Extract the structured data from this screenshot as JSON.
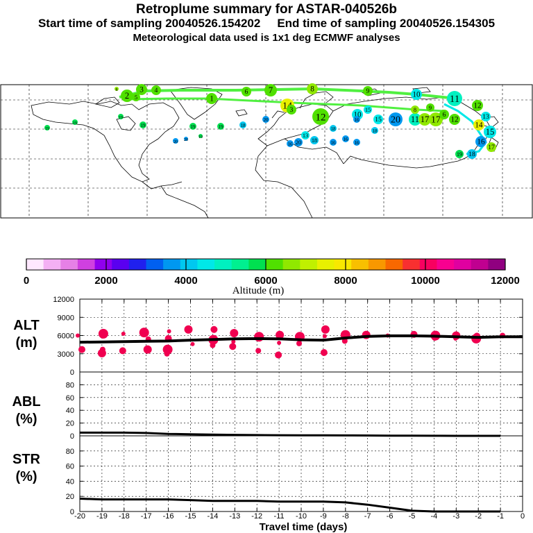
{
  "header": {
    "title": "Retroplume summary for ASTAR-040526b",
    "start_label": "Start time of sampling 20040526.154202",
    "end_label": "End time of sampling 20040526.154305",
    "met_line": "Meteorological data used is 1x1 deg ECMWF analyses"
  },
  "colorbar": {
    "colors": [
      "#ffe8ff",
      "#f4b0f4",
      "#e680e6",
      "#d040e0",
      "#9000ee",
      "#5a00f0",
      "#2020ee",
      "#0060f0",
      "#0098f0",
      "#00c8f0",
      "#00e8e8",
      "#00f0c0",
      "#00f090",
      "#00e050",
      "#50e000",
      "#90e800",
      "#c0f000",
      "#e8f000",
      "#f8e800",
      "#f8c000",
      "#f89800",
      "#f86800",
      "#f83030",
      "#f80060",
      "#f80090",
      "#e000a0",
      "#c00090",
      "#900080"
    ],
    "tick_labels": [
      "0",
      "2000",
      "4000",
      "6000",
      "8000",
      "10000",
      "12000"
    ],
    "label": "Altitude (m)"
  },
  "map": {
    "trajectory_labels": [
      {
        "t": "1",
        "c": "#50e000"
      },
      {
        "t": "2",
        "c": "#50e000"
      },
      {
        "t": "3",
        "c": "#50e000"
      },
      {
        "t": "4",
        "c": "#50e000"
      },
      {
        "t": "5",
        "c": "#50e000"
      },
      {
        "t": "6",
        "c": "#50e000"
      },
      {
        "t": "7",
        "c": "#50e000"
      },
      {
        "t": "8",
        "c": "#90e800"
      },
      {
        "t": "9",
        "c": "#50e000"
      },
      {
        "t": "10",
        "c": "#00e8e8"
      },
      {
        "t": "11",
        "c": "#00f0c0"
      },
      {
        "t": "12",
        "c": "#50e000"
      },
      {
        "t": "13",
        "c": "#00e8e8"
      },
      {
        "t": "14",
        "c": "#e8f000"
      },
      {
        "t": "15",
        "c": "#00e8e8"
      },
      {
        "t": "16",
        "c": "#0098f0"
      },
      {
        "t": "17",
        "c": "#90e800"
      },
      {
        "t": "18",
        "c": "#00c8f0"
      },
      {
        "t": "19",
        "c": "#00e050"
      },
      {
        "t": "20",
        "c": "#0098f0"
      }
    ]
  },
  "chart_data": [
    {
      "type": "scatter",
      "panel": "ALT",
      "ylabel": "(m)",
      "title": "ALT",
      "xlim": [
        -20,
        0
      ],
      "ylim": [
        0,
        12000
      ],
      "yticks": [
        0,
        3000,
        6000,
        9000,
        12000
      ],
      "median_line": [
        {
          "x": -20,
          "y": 4900
        },
        {
          "x": -19,
          "y": 4950
        },
        {
          "x": -18,
          "y": 5000
        },
        {
          "x": -17,
          "y": 5050
        },
        {
          "x": -16,
          "y": 5100
        },
        {
          "x": -15,
          "y": 5250
        },
        {
          "x": -14,
          "y": 5350
        },
        {
          "x": -13,
          "y": 5450
        },
        {
          "x": -12,
          "y": 5500
        },
        {
          "x": -11,
          "y": 5450
        },
        {
          "x": -10,
          "y": 5300
        },
        {
          "x": -9,
          "y": 5250
        },
        {
          "x": -8,
          "y": 5600
        },
        {
          "x": -7,
          "y": 5850
        },
        {
          "x": -6,
          "y": 5950
        },
        {
          "x": -5,
          "y": 5950
        },
        {
          "x": -4,
          "y": 5900
        },
        {
          "x": -3,
          "y": 5800
        },
        {
          "x": -2,
          "y": 5700
        },
        {
          "x": -1,
          "y": 5800
        },
        {
          "x": 0,
          "y": 5800
        }
      ],
      "points": [
        {
          "x": -20,
          "y": 6000
        },
        {
          "x": -20,
          "y": 3700
        },
        {
          "x": -19,
          "y": 6300
        },
        {
          "x": -19,
          "y": 3700
        },
        {
          "x": -19,
          "y": 3100
        },
        {
          "x": -18,
          "y": 6300
        },
        {
          "x": -18,
          "y": 3500
        },
        {
          "x": -17,
          "y": 6500
        },
        {
          "x": -17,
          "y": 5400
        },
        {
          "x": -17,
          "y": 3700
        },
        {
          "x": -16,
          "y": 6700
        },
        {
          "x": -16,
          "y": 5500
        },
        {
          "x": -16,
          "y": 3700
        },
        {
          "x": -16,
          "y": 3000
        },
        {
          "x": -15,
          "y": 7000
        },
        {
          "x": -15,
          "y": 4600
        },
        {
          "x": -14,
          "y": 7000
        },
        {
          "x": -14,
          "y": 5300
        },
        {
          "x": -14,
          "y": 4400
        },
        {
          "x": -13,
          "y": 6400
        },
        {
          "x": -13,
          "y": 5000
        },
        {
          "x": -13,
          "y": 4200
        },
        {
          "x": -12,
          "y": 5800
        },
        {
          "x": -12,
          "y": 3500
        },
        {
          "x": -11,
          "y": 6100
        },
        {
          "x": -11,
          "y": 4800
        },
        {
          "x": -11,
          "y": 2800
        },
        {
          "x": -10,
          "y": 5800
        },
        {
          "x": -10,
          "y": 4700
        },
        {
          "x": -9,
          "y": 7000
        },
        {
          "x": -9,
          "y": 5900
        },
        {
          "x": -9,
          "y": 3200
        },
        {
          "x": -8,
          "y": 6100
        },
        {
          "x": -8,
          "y": 5100
        },
        {
          "x": -7,
          "y": 6100
        },
        {
          "x": -6,
          "y": 6000
        },
        {
          "x": -5,
          "y": 6200
        },
        {
          "x": -4,
          "y": 6000
        },
        {
          "x": -4,
          "y": 5600
        },
        {
          "x": -3,
          "y": 6000
        },
        {
          "x": -3,
          "y": 5500
        },
        {
          "x": -2,
          "y": 5900
        },
        {
          "x": -2,
          "y": 5500
        },
        {
          "x": -1,
          "y": 6000
        }
      ]
    },
    {
      "type": "line",
      "panel": "ABL",
      "title": "ABL",
      "ylabel": "(%)",
      "xlim": [
        -20,
        0
      ],
      "ylim": [
        0,
        100
      ],
      "yticks": [
        0,
        20,
        40,
        60,
        80
      ],
      "x": [
        -20,
        -19,
        -18,
        -17,
        -16,
        -15,
        -14,
        -13,
        -12,
        -11,
        -10,
        -9,
        -8,
        -7,
        -6,
        -5,
        -4,
        -3,
        -2,
        -1
      ],
      "values": [
        5,
        5,
        5,
        4.5,
        3,
        2.5,
        2,
        1.5,
        1.2,
        1,
        0.9,
        0.8,
        0.6,
        0.5,
        0.3,
        0.2,
        0.1,
        0,
        0,
        0
      ]
    },
    {
      "type": "line",
      "panel": "STR",
      "title": "STR",
      "ylabel": "(%)",
      "xlim": [
        -20,
        0
      ],
      "ylim": [
        0,
        100
      ],
      "yticks": [
        0,
        20,
        40,
        60,
        80
      ],
      "xticks": [
        -20,
        -19,
        -18,
        -17,
        -16,
        -15,
        -14,
        -13,
        -12,
        -11,
        -10,
        -9,
        -8,
        -7,
        -6,
        -5,
        -4,
        -3,
        -2,
        -1,
        0
      ],
      "xlabel": "Travel time (days)",
      "x": [
        -20,
        -19,
        -18,
        -17,
        -16,
        -15,
        -14,
        -13,
        -12,
        -11,
        -10,
        -9,
        -8,
        -7,
        -6,
        -5,
        -4,
        -3,
        -2,
        -1
      ],
      "values": [
        17,
        16,
        16,
        16,
        16,
        15,
        14,
        14,
        14,
        13,
        13,
        13,
        12,
        9,
        5,
        1,
        0,
        0,
        0,
        0
      ]
    }
  ]
}
